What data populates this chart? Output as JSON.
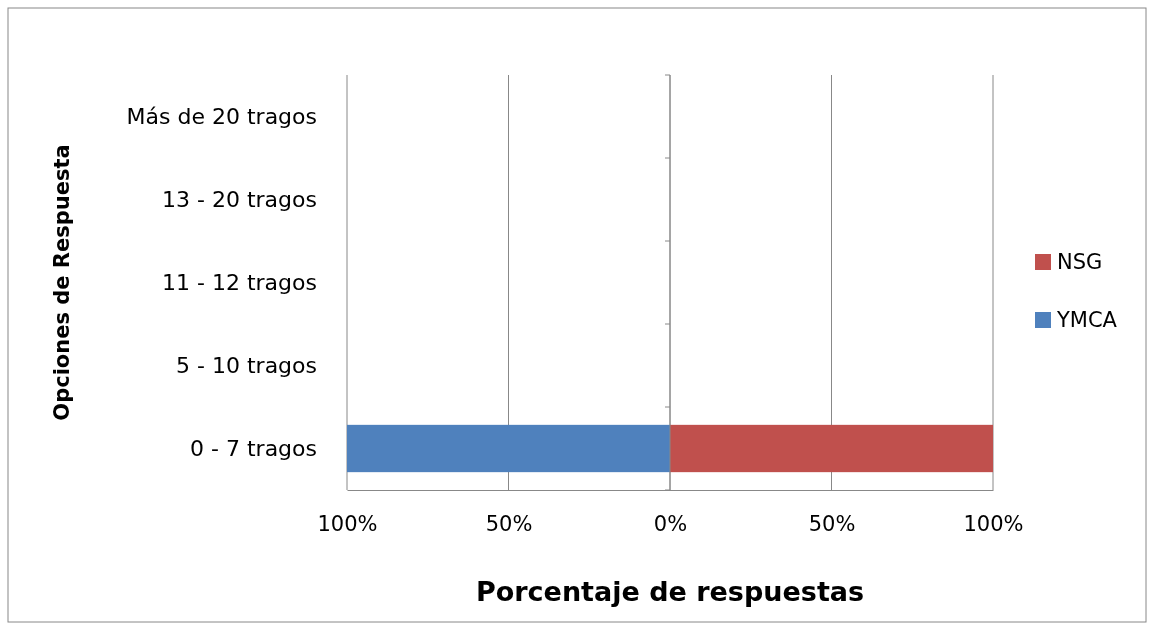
{
  "chart_data": {
    "type": "bar",
    "orientation": "horizontal",
    "xlabel": "Porcentaje de respuestas",
    "ylabel": "Opciones de Respuesta",
    "categories": [
      "Más de 20 tragos",
      "13 - 20 tragos",
      "11 - 12 tragos",
      "5 - 10 tragos",
      "0 - 7 tragos"
    ],
    "series": [
      {
        "name": "NSG",
        "color": "#c0504d",
        "values": [
          0,
          0,
          0,
          0,
          100
        ]
      },
      {
        "name": "YMCA",
        "color": "#4f81bd",
        "values": [
          0,
          0,
          0,
          0,
          -100
        ]
      }
    ],
    "xlim": [
      -100,
      100
    ],
    "xticks": [
      {
        "value": -100,
        "label": "100%"
      },
      {
        "value": -50,
        "label": "50%"
      },
      {
        "value": 0,
        "label": "0%"
      },
      {
        "value": 50,
        "label": "50%"
      },
      {
        "value": 100,
        "label": "100%"
      }
    ],
    "grid": "x",
    "legend": "right"
  }
}
